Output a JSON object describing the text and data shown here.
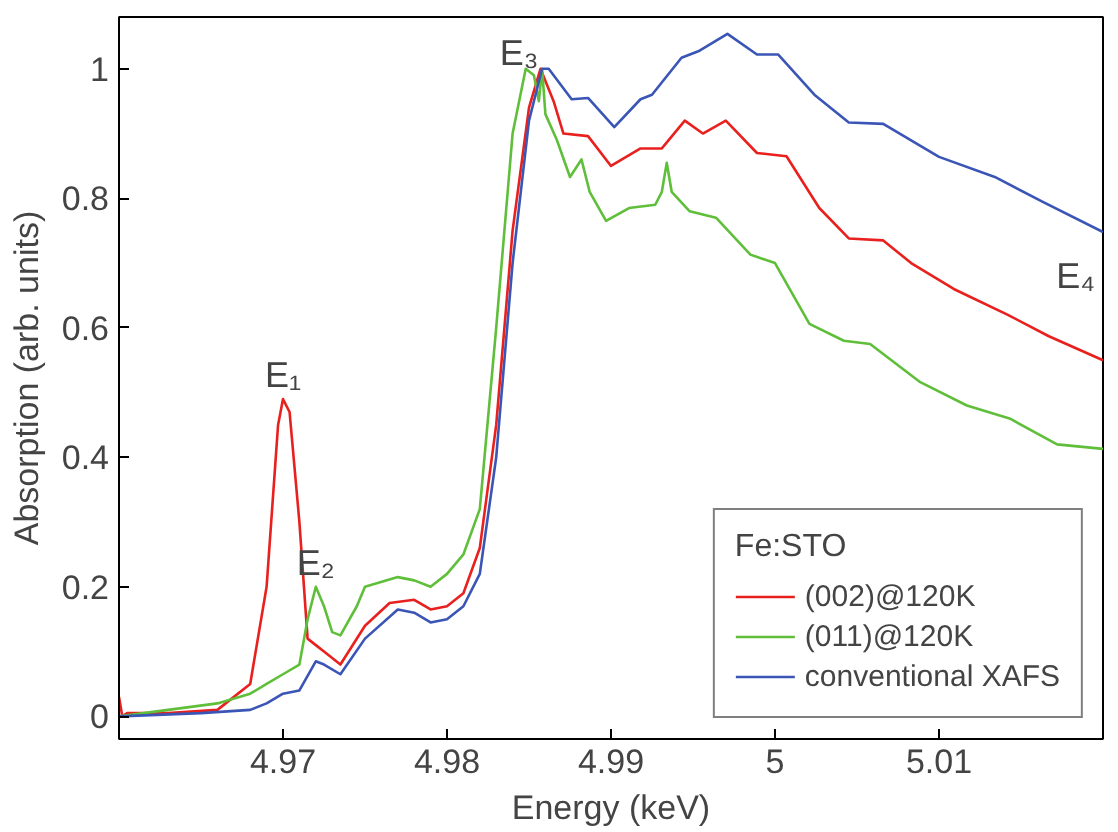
{
  "chart_data": {
    "type": "line",
    "xlabel": "Energy (keV)",
    "ylabel": "Absorption (arb. units)",
    "legend_title": "Fe:STO",
    "legend": "bottom right",
    "grid": false,
    "xlim": [
      4.96,
      5.02
    ],
    "ylim": [
      -0.035,
      1.08
    ],
    "xticks": [
      4.97,
      4.98,
      4.99,
      5,
      5.01
    ],
    "yticks": [
      0,
      0.2,
      0.4,
      0.6,
      0.8,
      1
    ],
    "annotations": [
      {
        "text": "E₁",
        "x": 4.97,
        "y": 0.49
      },
      {
        "text": "E₂",
        "x": 4.972,
        "y": 0.2
      },
      {
        "text": "E₃",
        "x": 4.9857,
        "y": 1.0
      },
      {
        "text": "E₄",
        "x": 5.02,
        "y": 0.748
      }
    ],
    "series": [
      {
        "name": "(002)@120K",
        "color": "#e8201e",
        "x": [
          4.96,
          4.9602,
          4.9605,
          4.963,
          4.966,
          4.968,
          4.969,
          4.9697,
          4.97,
          4.9704,
          4.971,
          4.9715,
          4.972,
          4.9725,
          4.9735,
          4.975,
          4.9765,
          4.978,
          4.979,
          4.98,
          4.981,
          4.982,
          4.983,
          4.984,
          4.985,
          4.9857,
          4.9865,
          4.9871,
          4.9886,
          4.99,
          4.9918,
          4.9931,
          4.9945,
          4.9956,
          4.997,
          4.9989,
          5.0007,
          5.0027,
          5.0045,
          5.0066,
          5.0083,
          5.0109,
          5.0142,
          5.0167,
          5.02
        ],
        "values": [
          0.03,
          0.0,
          0.005,
          0.005,
          0.01,
          0.05,
          0.2,
          0.45,
          0.49,
          0.47,
          0.3,
          0.12,
          0.11,
          0.1,
          0.08,
          0.14,
          0.175,
          0.18,
          0.165,
          0.17,
          0.19,
          0.26,
          0.45,
          0.75,
          0.94,
          1.0,
          0.95,
          0.9,
          0.896,
          0.85,
          0.877,
          0.877,
          0.92,
          0.9,
          0.92,
          0.87,
          0.865,
          0.785,
          0.738,
          0.735,
          0.7,
          0.66,
          0.62,
          0.587,
          0.55
        ]
      },
      {
        "name": "(011)@120K",
        "color": "#5fbf3a",
        "x": [
          4.96,
          4.963,
          4.966,
          4.968,
          4.969,
          4.97,
          4.971,
          4.9715,
          4.972,
          4.9725,
          4.973,
          4.9735,
          4.9745,
          4.975,
          4.977,
          4.978,
          4.979,
          4.98,
          4.981,
          4.982,
          4.983,
          4.984,
          4.9848,
          4.9853,
          4.9856,
          4.9858,
          4.986,
          4.9867,
          4.9875,
          4.9882,
          4.9887,
          4.9897,
          4.9911,
          4.9927,
          4.9931,
          4.9934,
          4.9937,
          4.9948,
          4.9964,
          4.9985,
          5.0,
          5.0021,
          5.0042,
          5.0058,
          5.0088,
          5.0117,
          5.0143,
          5.0172,
          5.02
        ],
        "values": [
          0.0,
          0.01,
          0.02,
          0.035,
          0.05,
          0.065,
          0.08,
          0.15,
          0.2,
          0.17,
          0.13,
          0.125,
          0.17,
          0.2,
          0.215,
          0.21,
          0.2,
          0.22,
          0.25,
          0.32,
          0.6,
          0.9,
          1.0,
          0.99,
          0.95,
          1.0,
          0.93,
          0.89,
          0.833,
          0.86,
          0.81,
          0.765,
          0.785,
          0.79,
          0.81,
          0.855,
          0.81,
          0.78,
          0.77,
          0.713,
          0.7,
          0.606,
          0.58,
          0.575,
          0.517,
          0.48,
          0.46,
          0.42,
          0.413
        ]
      },
      {
        "name": "conventional XAFS",
        "color": "#3a55b5",
        "x": [
          4.96,
          4.965,
          4.968,
          4.969,
          4.97,
          4.971,
          4.972,
          4.9725,
          4.9735,
          4.975,
          4.977,
          4.978,
          4.979,
          4.98,
          4.981,
          4.982,
          4.983,
          4.984,
          4.985,
          4.9858,
          4.9862,
          4.9876,
          4.9886,
          4.9902,
          4.9918,
          4.9925,
          4.9943,
          4.9954,
          4.9971,
          4.9989,
          5.0002,
          5.0024,
          5.0045,
          5.0066,
          5.01,
          5.0134,
          5.0163,
          5.02
        ],
        "values": [
          0.0,
          0.005,
          0.01,
          0.02,
          0.035,
          0.04,
          0.085,
          0.08,
          0.065,
          0.12,
          0.165,
          0.16,
          0.145,
          0.15,
          0.17,
          0.22,
          0.4,
          0.7,
          0.92,
          1.0,
          1.0,
          0.953,
          0.955,
          0.91,
          0.953,
          0.96,
          1.017,
          1.028,
          1.054,
          1.022,
          1.022,
          0.96,
          0.917,
          0.915,
          0.864,
          0.833,
          0.795,
          0.748
        ]
      }
    ]
  }
}
